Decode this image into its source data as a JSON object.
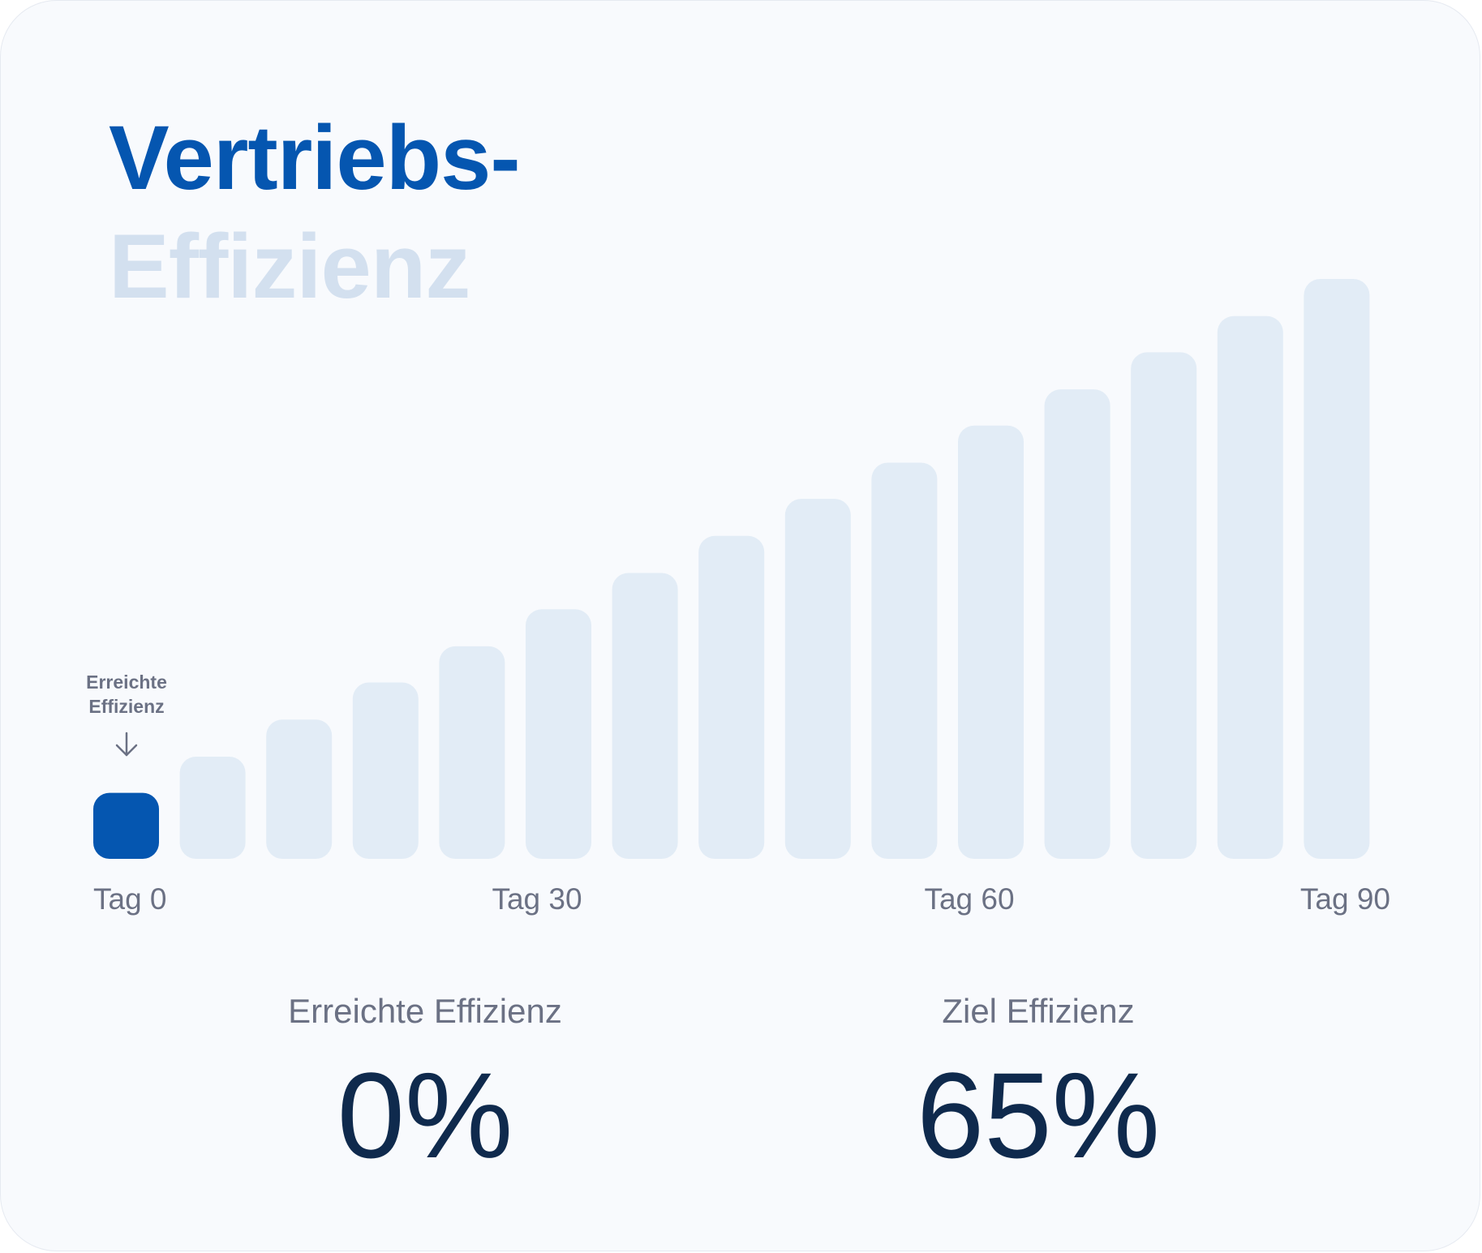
{
  "title": {
    "line1": "Vertriebs-",
    "line2": "Effizienz"
  },
  "colors": {
    "accent": "#0556b0",
    "bar_future": "#e2ecf6",
    "bar_current": "#0556b0",
    "title_muted": "#d3e0ef",
    "text_muted": "#6b7184",
    "value_text": "#0f2a4d",
    "card_bg": "#f8fafd"
  },
  "marker": {
    "line1": "Erreichte",
    "line2": "Effizienz",
    "icon": "arrow-down-icon"
  },
  "stats": {
    "achieved": {
      "label": "Erreichte Effizienz",
      "value": "0%"
    },
    "target": {
      "label": "Ziel Effizienz",
      "value": "65%"
    }
  },
  "chart_data": {
    "type": "bar",
    "title": "Vertriebs- Effizienz",
    "xlabel": "",
    "ylabel": "",
    "grid": false,
    "legend": "none",
    "x_ticks": [
      "Tag 0",
      "Tag 30",
      "Tag 60",
      "Tag 90"
    ],
    "ylim": [
      0,
      65
    ],
    "values": [
      7.3,
      11.3,
      15.4,
      19.5,
      23.5,
      27.6,
      31.6,
      35.7,
      39.8,
      43.8,
      47.9,
      51.9,
      56.0,
      60.0,
      64.1
    ],
    "highlighted_index": 0
  }
}
